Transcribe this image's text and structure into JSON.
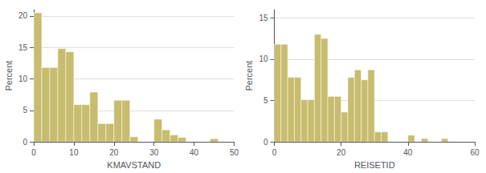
{
  "chart_data": [
    {
      "type": "histogram",
      "xlabel": "KMAVSTAND",
      "ylabel": "Percent",
      "color": "#c8bc6e",
      "bins": [
        0,
        2,
        4,
        6,
        8,
        10,
        12,
        14,
        16,
        18,
        20,
        22,
        24,
        26,
        28,
        30,
        32,
        34,
        36,
        38,
        40,
        42,
        44,
        46,
        48,
        50
      ],
      "values": [
        20.5,
        11.8,
        11.8,
        14.8,
        14.3,
        5.9,
        5.9,
        7.9,
        2.9,
        2.9,
        6.6,
        6.6,
        0.8,
        0.0,
        0.0,
        3.6,
        1.9,
        1.1,
        0.7,
        0.0,
        0.0,
        0.0,
        0.5,
        0.0,
        0.0
      ],
      "xlim": [
        0,
        50
      ],
      "ylim": [
        0,
        21
      ],
      "xticks": [
        0,
        10,
        20,
        30,
        40,
        50
      ],
      "yticks": [
        0,
        5,
        10,
        15,
        20
      ],
      "grid": true
    },
    {
      "type": "histogram",
      "xlabel": "REISETID",
      "ylabel": "Percent",
      "color": "#c8bc6e",
      "bins": [
        0,
        2,
        4,
        6,
        8,
        10,
        12,
        14,
        16,
        18,
        20,
        22,
        24,
        26,
        28,
        30,
        32,
        34,
        36,
        38,
        40,
        42,
        44,
        46,
        48,
        50,
        52,
        54,
        56,
        58,
        60
      ],
      "values": [
        11.8,
        11.8,
        7.8,
        7.8,
        5.1,
        5.1,
        13.0,
        12.5,
        5.5,
        5.5,
        3.6,
        7.8,
        8.7,
        7.5,
        8.7,
        1.2,
        1.2,
        0.0,
        0.0,
        0.0,
        0.8,
        0.0,
        0.4,
        0.0,
        0.0,
        0.4,
        0.0,
        0.0,
        0.0,
        0.0
      ],
      "xlim": [
        0,
        60
      ],
      "ylim": [
        0,
        16
      ],
      "xticks": [
        0,
        20,
        40,
        60
      ],
      "yticks": [
        0,
        5,
        10,
        15
      ],
      "grid": true
    }
  ]
}
